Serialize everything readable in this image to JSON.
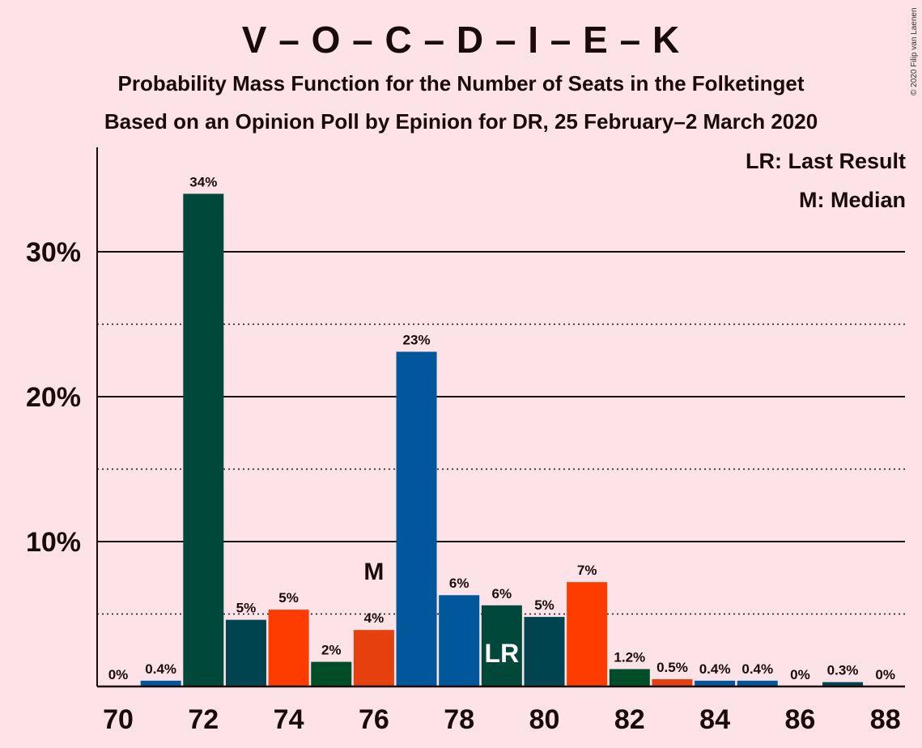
{
  "chart_data": {
    "type": "bar",
    "title": "V – O – C – D – I – E – K",
    "subtitle": "Probability Mass Function for the Number of Seats in the Folketinget",
    "subtitle2": "Based on an Opinion Poll by Epinion for DR, 25 February–2 March 2020",
    "copyright": "© 2020 Filip van Laenen",
    "legend": {
      "lr": "LR: Last Result",
      "m": "M: Median",
      "placement": "top-right"
    },
    "x": [
      70,
      71,
      72,
      73,
      74,
      75,
      76,
      77,
      78,
      79,
      80,
      81,
      82,
      83,
      84,
      85,
      86,
      87,
      88
    ],
    "values": [
      0,
      0.4,
      34,
      4.6,
      5.3,
      1.7,
      3.9,
      23.1,
      6.3,
      5.6,
      4.8,
      7.2,
      1.2,
      0.5,
      0.4,
      0.4,
      0,
      0.3,
      0
    ],
    "labels": [
      "0%",
      "0.4%",
      "34%",
      "5%",
      "5%",
      "2%",
      "4%",
      "23%",
      "6%",
      "6%",
      "5%",
      "7%",
      "1.2%",
      "0.5%",
      "0.4%",
      "0.4%",
      "0%",
      "0.3%",
      "0%"
    ],
    "colors": [
      "#00483a",
      "#00579c",
      "#00483a",
      "#004450",
      "#ff3c00",
      "#004d2a",
      "#e6400f",
      "#00579c",
      "#00579c",
      "#00483a",
      "#004450",
      "#ff3c00",
      "#004d2a",
      "#e6400f",
      "#00579c",
      "#00579c",
      "#00483a",
      "#004450",
      "#ff3c00"
    ],
    "xticks": [
      "70",
      "72",
      "74",
      "76",
      "78",
      "80",
      "82",
      "84",
      "86",
      "88"
    ],
    "yticks": [
      {
        "value": 10,
        "label": "10%"
      },
      {
        "value": 20,
        "label": "20%"
      },
      {
        "value": 30,
        "label": "30%"
      }
    ],
    "minor_gridlines": [
      5,
      15,
      25
    ],
    "ylim": [
      0,
      37
    ],
    "median": {
      "x": 76,
      "label": "M"
    },
    "last_result": {
      "x": 79,
      "label": "LR"
    }
  }
}
